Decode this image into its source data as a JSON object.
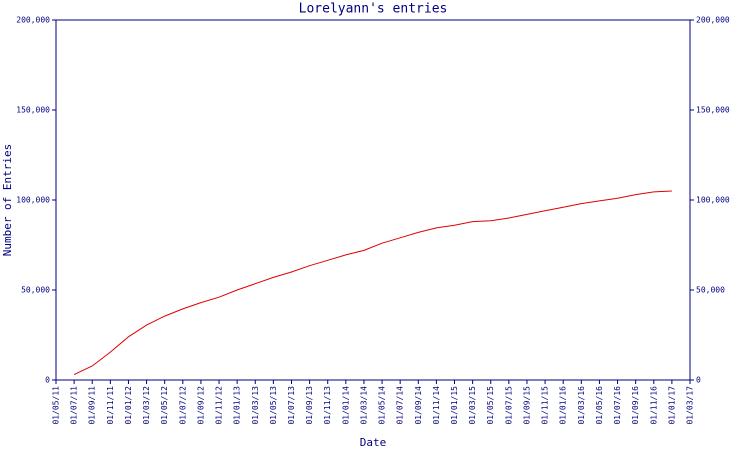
{
  "chart_data": {
    "type": "line",
    "title": "Lorelyann's entries",
    "x_label": "Date",
    "y_label": "Number of Entries",
    "categories": [
      "01/05/11",
      "01/07/11",
      "01/09/11",
      "01/11/11",
      "01/01/12",
      "01/03/12",
      "01/05/12",
      "01/07/12",
      "01/09/12",
      "01/11/12",
      "01/01/13",
      "01/03/13",
      "01/05/13",
      "01/07/13",
      "01/09/13",
      "01/11/13",
      "01/01/14",
      "01/03/14",
      "01/05/14",
      "01/07/14",
      "01/09/14",
      "01/11/14",
      "01/01/15",
      "01/03/15",
      "01/05/15",
      "01/07/15",
      "01/09/15",
      "01/11/15",
      "01/01/16",
      "01/03/16",
      "01/05/16",
      "01/07/16",
      "01/09/16",
      "01/11/16",
      "01/01/17",
      "01/03/17"
    ],
    "series": [
      {
        "name": "Entries",
        "color": "#e00000",
        "values": [
          null,
          3000,
          7800,
          15500,
          24000,
          30500,
          35500,
          39500,
          43000,
          46000,
          50000,
          53500,
          57000,
          60000,
          63500,
          66500,
          69500,
          72000,
          76000,
          79000,
          82000,
          84500,
          86000,
          88000,
          88500,
          90000,
          92000,
          94000,
          96000,
          98000,
          99500,
          101000,
          103000,
          104500,
          105000,
          null
        ]
      }
    ],
    "ylim": [
      0,
      200000
    ],
    "yticks": [
      0,
      {
        "value": 50000,
        "label": "50,000"
      },
      {
        "value": 100000,
        "label": "100,000"
      },
      {
        "value": 150000,
        "label": "150,000"
      },
      {
        "value": 200000,
        "label": "200,000"
      }
    ],
    "axis_color": "#000080"
  }
}
